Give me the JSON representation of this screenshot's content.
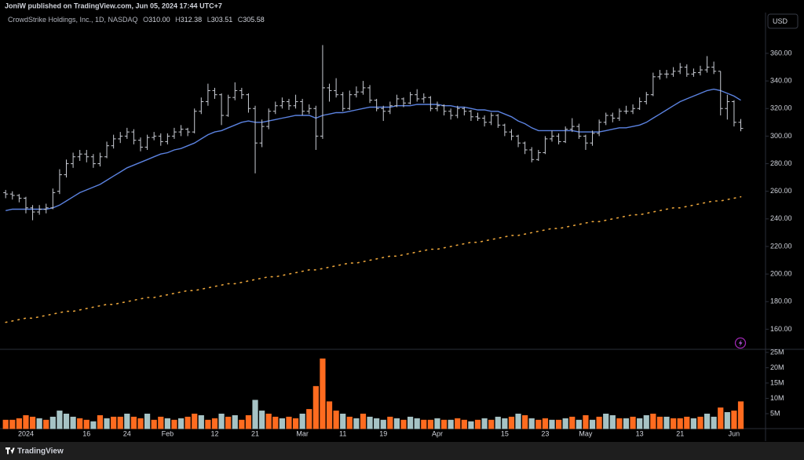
{
  "header": "JoniW published on TradingView.com, Jun 05, 2024 17:44 UTC+7",
  "footer": "TradingView",
  "chart_data": {
    "type": "ohlc",
    "legend": {
      "name": "CrowdStrike Holdings, Inc., 1D, NASDAQ",
      "open_label": "O",
      "open": "310.00",
      "high_label": "H",
      "high": "312.38",
      "low_label": "L",
      "low": "303.51",
      "close_label": "C",
      "close": "305.58"
    },
    "currency": "USD",
    "bar_color": "#c9ccd4",
    "categories": [
      null,
      null,
      null,
      "2024",
      null,
      null,
      null,
      null,
      null,
      null,
      null,
      null,
      "16",
      null,
      null,
      null,
      null,
      null,
      "24",
      null,
      null,
      null,
      null,
      null,
      "Feb",
      null,
      null,
      null,
      null,
      null,
      null,
      "12",
      null,
      null,
      null,
      null,
      null,
      "21",
      null,
      null,
      null,
      null,
      null,
      null,
      "Mar",
      null,
      null,
      null,
      null,
      null,
      "11",
      null,
      null,
      null,
      null,
      null,
      "19",
      null,
      null,
      null,
      null,
      null,
      null,
      null,
      "Apr",
      null,
      null,
      null,
      null,
      null,
      null,
      null,
      null,
      null,
      "15",
      null,
      null,
      null,
      null,
      null,
      "23",
      null,
      null,
      null,
      null,
      null,
      "May",
      null,
      null,
      null,
      null,
      null,
      null,
      null,
      "13",
      null,
      null,
      null,
      null,
      null,
      "21",
      null,
      null,
      null,
      null,
      null,
      null,
      null,
      "Jun",
      null
    ],
    "open": [
      259,
      258,
      257,
      255,
      248,
      245,
      247,
      248,
      260,
      272,
      280,
      285,
      287,
      285,
      280,
      285,
      293,
      298,
      300,
      303,
      297,
      292,
      299,
      300,
      296,
      300,
      303,
      305,
      303,
      318,
      325,
      333,
      330,
      315,
      328,
      333,
      330,
      320,
      295,
      307,
      318,
      322,
      325,
      322,
      325,
      318,
      320,
      300,
      335,
      333,
      330,
      320,
      330,
      332,
      335,
      326,
      320,
      318,
      322,
      327,
      324,
      330,
      327,
      328,
      320,
      322,
      318,
      315,
      320,
      318,
      314,
      313,
      310,
      315,
      308,
      303,
      300,
      295,
      290,
      283,
      288,
      298,
      300,
      296,
      305,
      307,
      300,
      295,
      302,
      310,
      315,
      313,
      318,
      318,
      320,
      325,
      330,
      343,
      345,
      345,
      347,
      350,
      345,
      346,
      348,
      350,
      347,
      320,
      325,
      310
    ],
    "high": [
      261,
      260,
      258,
      256,
      250,
      250,
      251,
      262,
      276,
      283,
      288,
      290,
      290,
      287,
      288,
      296,
      301,
      303,
      306,
      305,
      299,
      301,
      303,
      302,
      302,
      306,
      308,
      306,
      320,
      328,
      338,
      335,
      331,
      330,
      339,
      335,
      331,
      322,
      312,
      320,
      325,
      328,
      327,
      330,
      327,
      323,
      322,
      366,
      338,
      342,
      332,
      333,
      336,
      340,
      337,
      327,
      322,
      325,
      330,
      328,
      332,
      334,
      331,
      329,
      325,
      323,
      320,
      322,
      321,
      319,
      317,
      315,
      317,
      316,
      309,
      305,
      301,
      296,
      292,
      290,
      300,
      304,
      302,
      307,
      313,
      309,
      301,
      304,
      312,
      317,
      317,
      320,
      322,
      323,
      328,
      332,
      346,
      348,
      348,
      350,
      353,
      352,
      349,
      351,
      358,
      354,
      347,
      330,
      326,
      312.38
    ],
    "low": [
      255,
      254,
      252,
      244,
      239,
      243,
      244,
      247,
      258,
      270,
      277,
      282,
      281,
      277,
      278,
      284,
      291,
      295,
      298,
      294,
      289,
      290,
      297,
      293,
      294,
      298,
      300,
      300,
      302,
      316,
      322,
      327,
      308,
      314,
      326,
      327,
      317,
      273,
      292,
      305,
      316,
      320,
      319,
      320,
      315,
      316,
      290,
      298,
      325,
      328,
      318,
      319,
      328,
      330,
      324,
      318,
      311,
      316,
      321,
      321,
      323,
      325,
      324,
      318,
      318,
      315,
      312,
      313,
      315,
      311,
      311,
      307,
      308,
      306,
      300,
      297,
      292,
      287,
      281,
      282,
      287,
      296,
      294,
      295,
      303,
      298,
      290,
      293,
      300,
      308,
      310,
      311,
      316,
      316,
      319,
      323,
      329,
      341,
      342,
      343,
      345,
      343,
      343,
      344,
      346,
      345,
      315,
      312,
      307,
      303.51
    ],
    "close": [
      258,
      257,
      255,
      248,
      245,
      247,
      248,
      259,
      272,
      280,
      285,
      287,
      285,
      280,
      285,
      293,
      298,
      300,
      303,
      297,
      292,
      299,
      300,
      296,
      300,
      303,
      305,
      303,
      318,
      325,
      333,
      330,
      315,
      328,
      333,
      330,
      320,
      295,
      307,
      318,
      322,
      325,
      322,
      325,
      318,
      320,
      300,
      335,
      333,
      330,
      320,
      330,
      332,
      335,
      326,
      320,
      318,
      322,
      327,
      324,
      330,
      327,
      328,
      320,
      322,
      318,
      315,
      320,
      318,
      314,
      313,
      310,
      315,
      308,
      303,
      300,
      295,
      290,
      283,
      288,
      298,
      300,
      296,
      305,
      307,
      300,
      295,
      302,
      310,
      315,
      313,
      318,
      318,
      320,
      325,
      330,
      343,
      345,
      345,
      347,
      350,
      345,
      346,
      348,
      350,
      347,
      320,
      325,
      310,
      305.58
    ],
    "ylim": [
      146,
      389
    ],
    "yticks": [
      {
        "value": 160,
        "label": "160.00"
      },
      {
        "value": 180,
        "label": "180.00"
      },
      {
        "value": 200,
        "label": "200.00"
      },
      {
        "value": 220,
        "label": "220.00"
      },
      {
        "value": 240,
        "label": "240.00"
      },
      {
        "value": 260,
        "label": "260.00"
      },
      {
        "value": 280,
        "label": "280.00"
      },
      {
        "value": 300,
        "label": "300.00"
      },
      {
        "value": 320,
        "label": "320.00"
      },
      {
        "value": 340,
        "label": "340.00"
      },
      {
        "value": 360,
        "label": "360.00"
      }
    ],
    "overlays": [
      {
        "color": "#5b82e0",
        "style": "solid",
        "values": [
          246,
          247,
          247,
          247,
          247,
          247,
          247,
          248,
          250,
          253,
          256,
          259,
          261,
          263,
          265,
          268,
          271,
          274,
          277,
          279,
          281,
          283,
          285,
          287,
          288,
          290,
          291,
          293,
          295,
          298,
          301,
          303,
          304,
          306,
          308,
          310,
          311,
          310,
          310,
          311,
          312,
          313,
          314,
          315,
          315,
          315,
          313,
          315,
          316,
          317,
          317,
          318,
          319,
          320,
          321,
          321,
          321,
          321,
          322,
          322,
          322,
          323,
          323,
          323,
          323,
          322,
          322,
          321,
          321,
          320,
          319,
          319,
          318,
          318,
          316,
          314,
          311,
          309,
          306,
          304,
          304,
          304,
          304,
          304,
          304,
          303,
          303,
          303,
          303,
          304,
          305,
          306,
          306,
          307,
          308,
          310,
          313,
          316,
          319,
          322,
          325,
          327,
          329,
          331,
          333,
          334,
          333,
          331,
          329,
          326
        ]
      },
      {
        "color": "#e8a33a",
        "style": "dotted",
        "values": [
          165,
          166,
          167,
          168,
          168,
          169,
          170,
          171,
          172,
          173,
          173,
          174,
          175,
          176,
          177,
          178,
          178,
          179,
          180,
          181,
          182,
          183,
          183,
          184,
          185,
          186,
          187,
          188,
          188,
          189,
          190,
          191,
          192,
          193,
          193,
          194,
          195,
          196,
          197,
          198,
          198,
          199,
          200,
          201,
          202,
          203,
          203,
          204,
          205,
          206,
          207,
          208,
          208,
          209,
          210,
          211,
          212,
          213,
          213,
          214,
          215,
          216,
          217,
          218,
          218,
          219,
          220,
          221,
          222,
          223,
          223,
          224,
          225,
          226,
          227,
          228,
          228,
          229,
          230,
          231,
          232,
          233,
          233,
          234,
          235,
          236,
          237,
          238,
          238,
          239,
          240,
          241,
          242,
          243,
          243,
          244,
          245,
          246,
          247,
          248,
          248,
          249,
          250,
          251,
          252,
          253,
          253,
          254,
          255,
          256
        ]
      }
    ],
    "volume": {
      "up_color": "#a6c3c5",
      "down_color": "#ff6b1f",
      "values": [
        3,
        3,
        3.5,
        4.5,
        4,
        3.5,
        3,
        4,
        6,
        5,
        4,
        3.5,
        3,
        2.5,
        4.5,
        3.5,
        4,
        4,
        5,
        4,
        3.5,
        5,
        3,
        4,
        3.5,
        3,
        3.5,
        4,
        5,
        4.5,
        3,
        3.5,
        5,
        4,
        4.5,
        3,
        4.5,
        9.5,
        6,
        5,
        4,
        3.5,
        4,
        3.5,
        5,
        6.5,
        14,
        23,
        9,
        6,
        5,
        4,
        3.5,
        5,
        4,
        3.5,
        3,
        4,
        3.5,
        3,
        4,
        3.5,
        3,
        3,
        3.5,
        3,
        3,
        3.5,
        3,
        2.5,
        3,
        3.5,
        3,
        4,
        3.5,
        4,
        5,
        4.5,
        3.5,
        3,
        3.5,
        3,
        3,
        3.5,
        4,
        3,
        4.5,
        3,
        4,
        5,
        4.5,
        3.5,
        3.5,
        4,
        3.5,
        4.5,
        5,
        4,
        4,
        3.5,
        3.5,
        4,
        3.5,
        4,
        5,
        4,
        7,
        5.5,
        6,
        9
      ],
      "direction": [
        "down",
        "down",
        "down",
        "down",
        "down",
        "up",
        "down",
        "up",
        "up",
        "up",
        "up",
        "down",
        "down",
        "up",
        "down",
        "up",
        "down",
        "down",
        "up",
        "down",
        "down",
        "up",
        "down",
        "down",
        "up",
        "down",
        "up",
        "down",
        "down",
        "up",
        "down",
        "down",
        "up",
        "down",
        "up",
        "down",
        "down",
        "up",
        "up",
        "down",
        "down",
        "up",
        "down",
        "down",
        "up",
        "down",
        "down",
        "down",
        "down",
        "down",
        "up",
        "down",
        "up",
        "down",
        "up",
        "up",
        "up",
        "down",
        "up",
        "down",
        "up",
        "up",
        "down",
        "down",
        "up",
        "down",
        "up",
        "down",
        "down",
        "up",
        "down",
        "up",
        "down",
        "up",
        "up",
        "down",
        "up",
        "down",
        "up",
        "down",
        "down",
        "up",
        "down",
        "up",
        "down",
        "up",
        "down",
        "up",
        "down",
        "up",
        "up",
        "down",
        "up",
        "down",
        "up",
        "up",
        "down",
        "down",
        "up",
        "down",
        "down",
        "down",
        "up",
        "down",
        "up",
        "up",
        "down",
        "up",
        "down",
        "down"
      ],
      "ylim": [
        0,
        26
      ],
      "yticks": [
        {
          "value": 5,
          "label": "5M"
        },
        {
          "value": 10,
          "label": "10M"
        },
        {
          "value": 15,
          "label": "15M"
        },
        {
          "value": 20,
          "label": "20M"
        },
        {
          "value": 25,
          "label": "25M"
        }
      ]
    }
  }
}
